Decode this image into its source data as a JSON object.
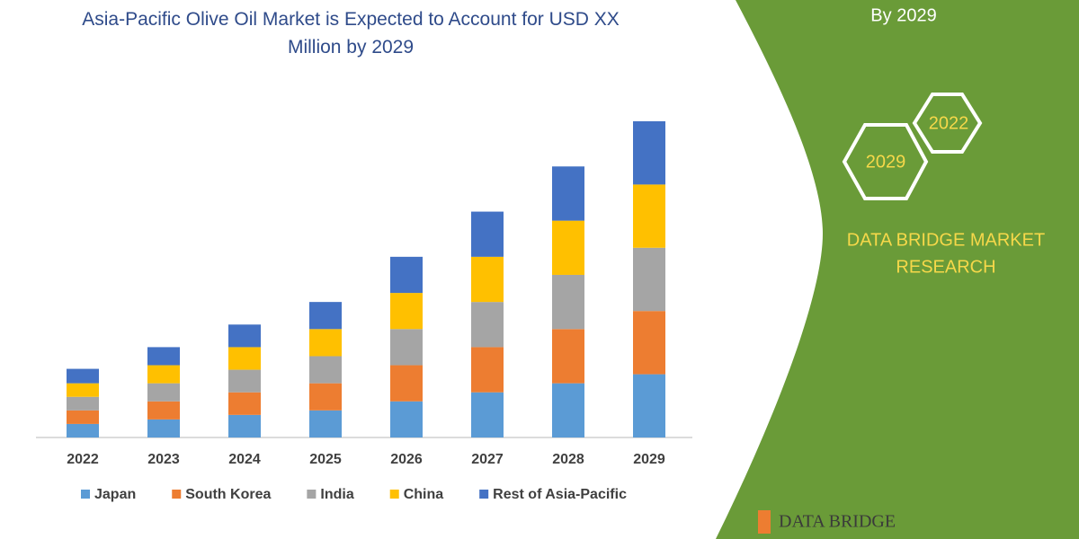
{
  "chart_data": {
    "type": "bar",
    "stacked": true,
    "title": "Asia-Pacific Olive Oil Market is Expected to Account for USD XX Million by 2029",
    "categories": [
      "2022",
      "2023",
      "2024",
      "2025",
      "2026",
      "2027",
      "2028",
      "2029"
    ],
    "series": [
      {
        "name": "Japan",
        "color": "#5b9bd5",
        "values": [
          15,
          20,
          25,
          30,
          40,
          50,
          60,
          70
        ]
      },
      {
        "name": "South Korea",
        "color": "#ed7d31",
        "values": [
          15,
          20,
          25,
          30,
          40,
          50,
          60,
          70
        ]
      },
      {
        "name": "India",
        "color": "#a5a5a5",
        "values": [
          15,
          20,
          25,
          30,
          40,
          50,
          60,
          70
        ]
      },
      {
        "name": "China",
        "color": "#ffc000",
        "values": [
          15,
          20,
          25,
          30,
          40,
          50,
          60,
          70
        ]
      },
      {
        "name": "Rest of Asia-Pacific",
        "color": "#4472c4",
        "values": [
          16,
          20,
          25,
          30,
          40,
          50,
          60,
          70
        ]
      }
    ]
  },
  "side_panel": {
    "heading": "By 2029",
    "badges": [
      "2022",
      "2029"
    ],
    "brand_lines": [
      "DATA BRIDGE MARKET",
      "RESEARCH"
    ],
    "logo": "DATA BRIDGE"
  }
}
